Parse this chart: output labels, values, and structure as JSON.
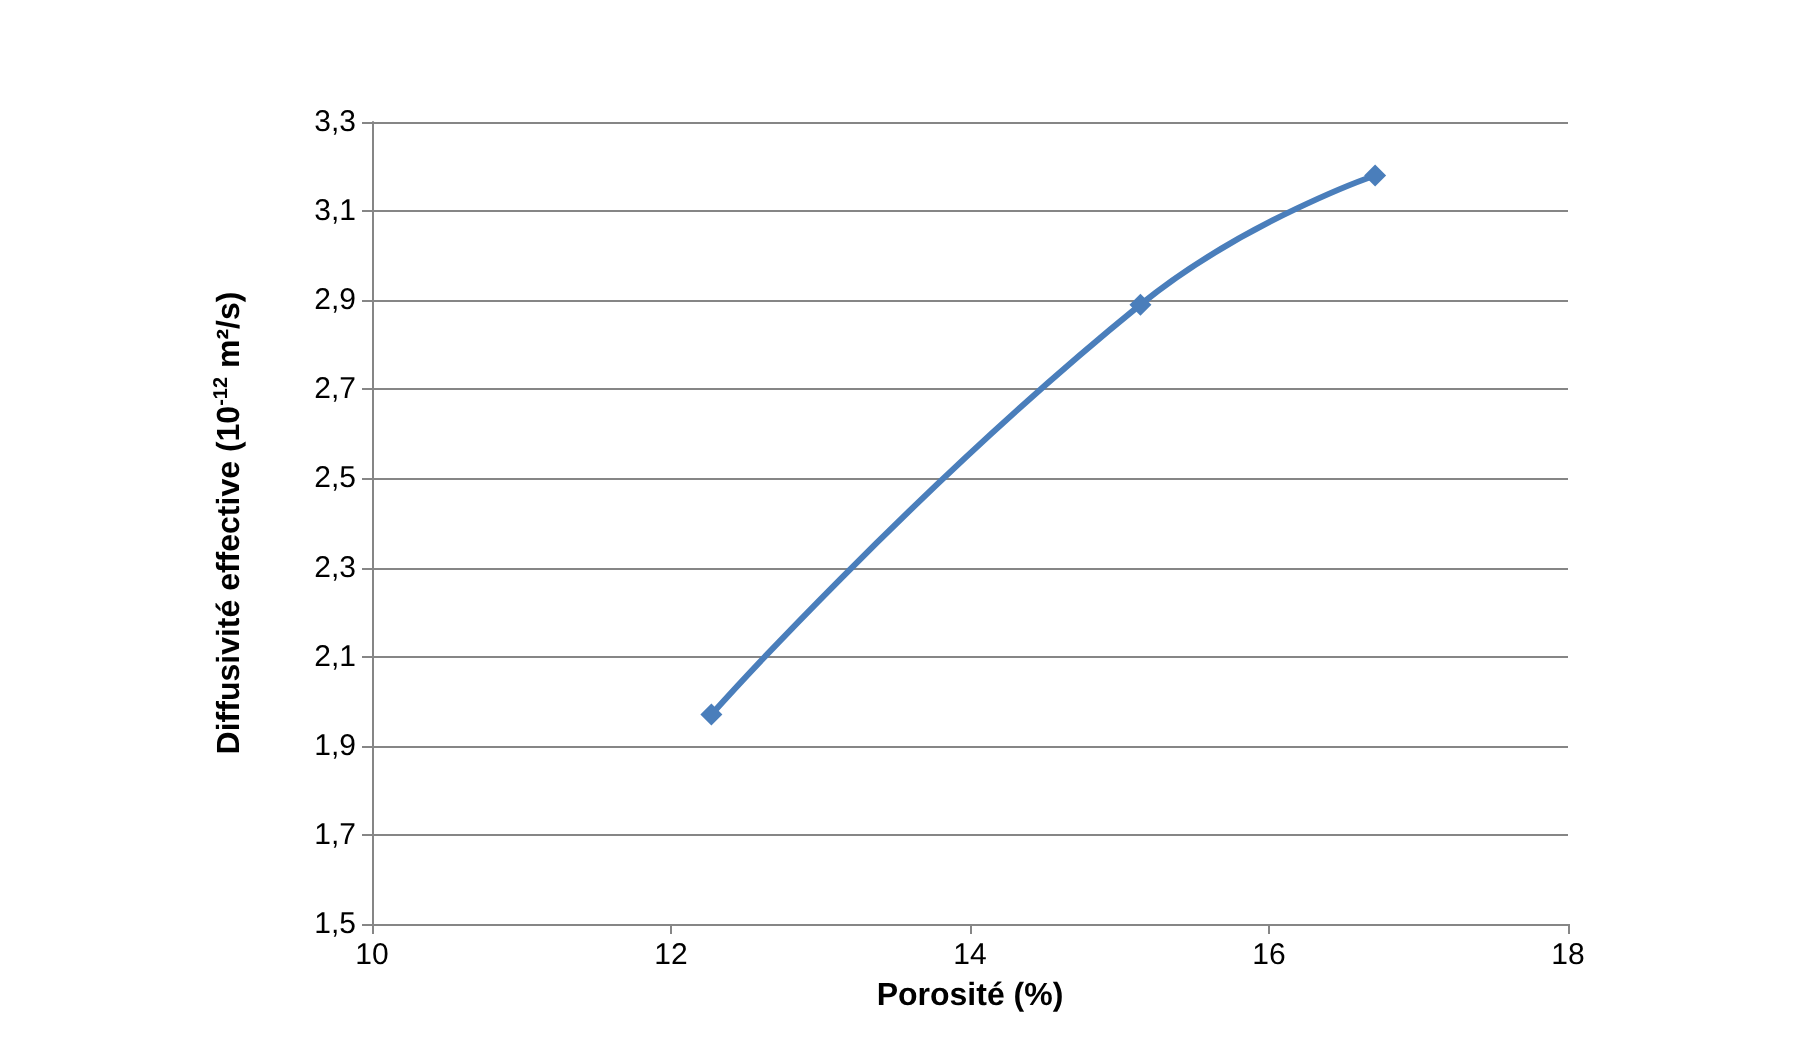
{
  "chart_data": {
    "type": "line",
    "xlabel": "Porosité (%)",
    "ylabel": "Diffusivité effective (10$^{-12}$ m²/s)",
    "x": [
      12.27,
      15.14,
      16.71
    ],
    "series": [
      {
        "color": "#4a7ebb",
        "values": [
          1.97,
          2.89,
          3.18
        ]
      }
    ],
    "xlim": [
      10,
      18
    ],
    "xticks": [
      10,
      12,
      14,
      16,
      18
    ],
    "ylim": [
      1.5,
      3.3
    ],
    "yticks": [
      {
        "value": 1.5,
        "label": "1,5"
      },
      {
        "value": 1.7,
        "label": "1,7"
      },
      {
        "value": 1.9,
        "label": "1,9"
      },
      {
        "value": 2.1,
        "label": "2,1"
      },
      {
        "value": 2.3,
        "label": "2,3"
      },
      {
        "value": 2.5,
        "label": "2,5"
      },
      {
        "value": 2.7,
        "label": "2,7"
      },
      {
        "value": 2.9,
        "label": "2,9"
      },
      {
        "value": 3.1,
        "label": "3,1"
      },
      {
        "value": 3.3,
        "label": "3,3"
      }
    ],
    "grid": "y",
    "marker": "diamond",
    "line_style": "solid"
  }
}
